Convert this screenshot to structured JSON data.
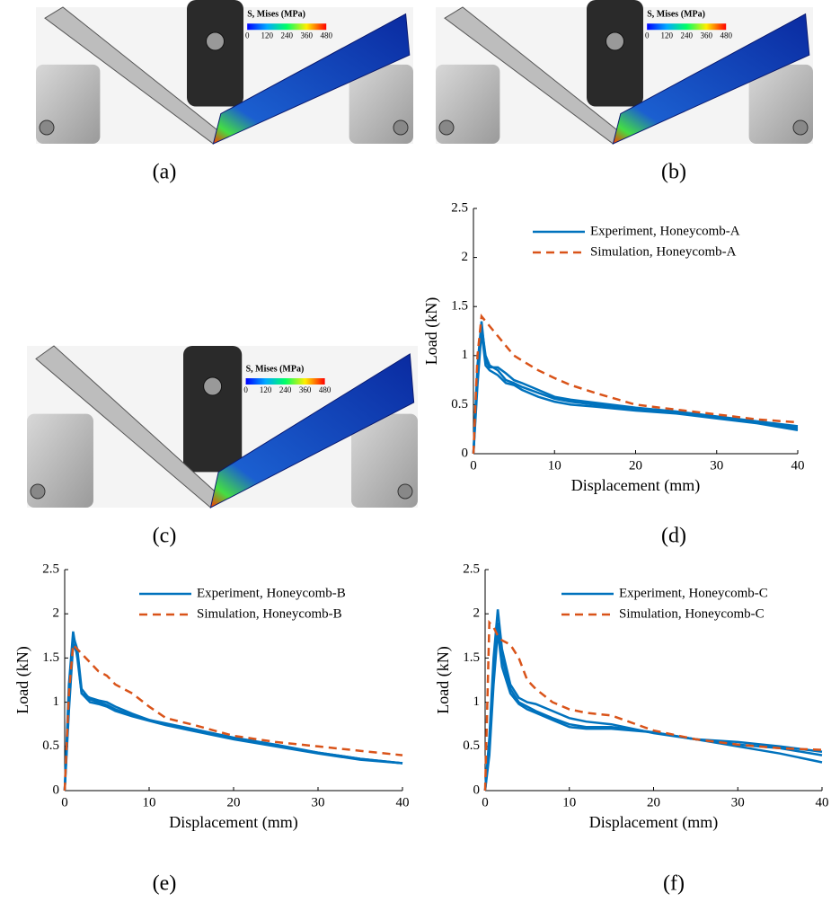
{
  "images": [
    {
      "caption": "(a)",
      "legend_title": "S, Mises (MPa)",
      "colorbar_ticks": [
        0,
        120,
        240,
        360,
        480
      ]
    },
    {
      "caption": "(b)",
      "legend_title": "S, Mises (MPa)",
      "colorbar_ticks": [
        0,
        120,
        240,
        360,
        480
      ]
    },
    {
      "caption": "(c)",
      "legend_title": "S, Mises (MPa)",
      "colorbar_ticks": [
        0,
        120,
        240,
        360,
        480
      ]
    }
  ],
  "chart_data": [
    {
      "type": "line",
      "caption": "(d)",
      "xlabel": "Displacement (mm)",
      "ylabel": "Load (kN)",
      "xlim": [
        0,
        40
      ],
      "ylim": [
        0,
        2.5
      ],
      "xticks": [
        0,
        10,
        20,
        30,
        40
      ],
      "yticks": [
        0,
        0.5,
        1,
        1.5,
        2,
        2.5
      ],
      "legend": "upper right",
      "x": [
        0,
        0.5,
        1,
        1.5,
        2,
        3,
        4,
        5,
        6,
        8,
        10,
        12,
        15,
        20,
        25,
        30,
        35,
        40
      ],
      "series": [
        {
          "name": "Experiment, Honeycomb-A",
          "color": "#0072bd",
          "style": "solid",
          "curves": [
            [
              0,
              0.9,
              1.35,
              0.95,
              0.88,
              0.88,
              0.82,
              0.75,
              0.72,
              0.65,
              0.58,
              0.55,
              0.52,
              0.47,
              0.43,
              0.38,
              0.33,
              0.28
            ],
            [
              0,
              0.8,
              1.3,
              1.0,
              0.9,
              0.85,
              0.75,
              0.72,
              0.68,
              0.62,
              0.56,
              0.53,
              0.5,
              0.46,
              0.42,
              0.37,
              0.32,
              0.26
            ],
            [
              0,
              0.7,
              1.25,
              0.9,
              0.85,
              0.8,
              0.72,
              0.7,
              0.65,
              0.58,
              0.53,
              0.5,
              0.48,
              0.44,
              0.41,
              0.36,
              0.31,
              0.24
            ]
          ]
        },
        {
          "name": "Simulation, Honeycomb-A",
          "color": "#d95319",
          "style": "dashed",
          "curves": [
            [
              0,
              1.0,
              1.4,
              1.35,
              1.3,
              1.2,
              1.1,
              1.0,
              0.95,
              0.85,
              0.77,
              0.7,
              0.62,
              0.5,
              0.45,
              0.4,
              0.35,
              0.32
            ]
          ]
        }
      ]
    },
    {
      "type": "line",
      "caption": "(e)",
      "xlabel": "Displacement (mm)",
      "ylabel": "Load (kN)",
      "xlim": [
        0,
        40
      ],
      "ylim": [
        0,
        2.5
      ],
      "xticks": [
        0,
        10,
        20,
        30,
        40
      ],
      "yticks": [
        0,
        0.5,
        1,
        1.5,
        2,
        2.5
      ],
      "legend": "upper right",
      "x": [
        0,
        0.5,
        1,
        1.5,
        2,
        3,
        4,
        5,
        6,
        8,
        10,
        12,
        15,
        20,
        25,
        30,
        35,
        40
      ],
      "series": [
        {
          "name": "Experiment, Honeycomb-B",
          "color": "#0072bd",
          "style": "solid",
          "curves": [
            [
              0,
              1.2,
              1.8,
              1.5,
              1.1,
              1.05,
              1.02,
              1.0,
              0.95,
              0.87,
              0.8,
              0.76,
              0.7,
              0.6,
              0.52,
              0.43,
              0.36,
              0.31
            ],
            [
              0,
              1.0,
              1.75,
              1.6,
              1.15,
              1.03,
              1.0,
              0.97,
              0.92,
              0.85,
              0.8,
              0.75,
              0.69,
              0.59,
              0.51,
              0.43,
              0.36,
              0.31
            ],
            [
              0,
              0.9,
              1.65,
              1.55,
              1.1,
              1.0,
              0.98,
              0.95,
              0.9,
              0.84,
              0.79,
              0.74,
              0.68,
              0.58,
              0.5,
              0.42,
              0.35,
              0.31
            ]
          ]
        },
        {
          "name": "Simulation, Honeycomb-B",
          "color": "#d95319",
          "style": "dashed",
          "curves": [
            [
              0,
              1.1,
              1.65,
              1.6,
              1.55,
              1.45,
              1.35,
              1.3,
              1.2,
              1.1,
              0.95,
              0.82,
              0.75,
              0.62,
              0.55,
              0.5,
              0.45,
              0.4
            ]
          ]
        }
      ]
    },
    {
      "type": "line",
      "caption": "(f)",
      "xlabel": "Displacement (mm)",
      "ylabel": "Load (kN)",
      "xlim": [
        0,
        40
      ],
      "ylim": [
        0,
        2.5
      ],
      "xticks": [
        0,
        10,
        20,
        30,
        40
      ],
      "yticks": [
        0,
        0.5,
        1,
        1.5,
        2,
        2.5
      ],
      "legend": "upper right",
      "x": [
        0,
        0.5,
        1,
        1.5,
        2,
        3,
        4,
        5,
        6,
        8,
        10,
        12,
        15,
        20,
        25,
        30,
        35,
        40
      ],
      "series": [
        {
          "name": "Experiment, Honeycomb-C",
          "color": "#0072bd",
          "style": "solid",
          "curves": [
            [
              0,
              0.6,
              1.5,
              2.05,
              1.6,
              1.2,
              1.05,
              1.0,
              0.98,
              0.9,
              0.82,
              0.78,
              0.75,
              0.65,
              0.58,
              0.5,
              0.42,
              0.32
            ],
            [
              0,
              0.5,
              1.4,
              1.9,
              1.5,
              1.15,
              1.0,
              0.95,
              0.9,
              0.82,
              0.75,
              0.72,
              0.72,
              0.66,
              0.58,
              0.52,
              0.48,
              0.4
            ],
            [
              0,
              0.4,
              1.2,
              1.8,
              1.4,
              1.1,
              0.98,
              0.92,
              0.88,
              0.8,
              0.72,
              0.7,
              0.7,
              0.66,
              0.58,
              0.55,
              0.5,
              0.44
            ]
          ]
        },
        {
          "name": "Simulation, Honeycomb-C",
          "color": "#d95319",
          "style": "dashed",
          "curves": [
            [
              0,
              1.9,
              1.85,
              1.75,
              1.7,
              1.65,
              1.5,
              1.25,
              1.15,
              1.0,
              0.92,
              0.88,
              0.85,
              0.68,
              0.58,
              0.52,
              0.48,
              0.46
            ]
          ]
        }
      ]
    }
  ]
}
